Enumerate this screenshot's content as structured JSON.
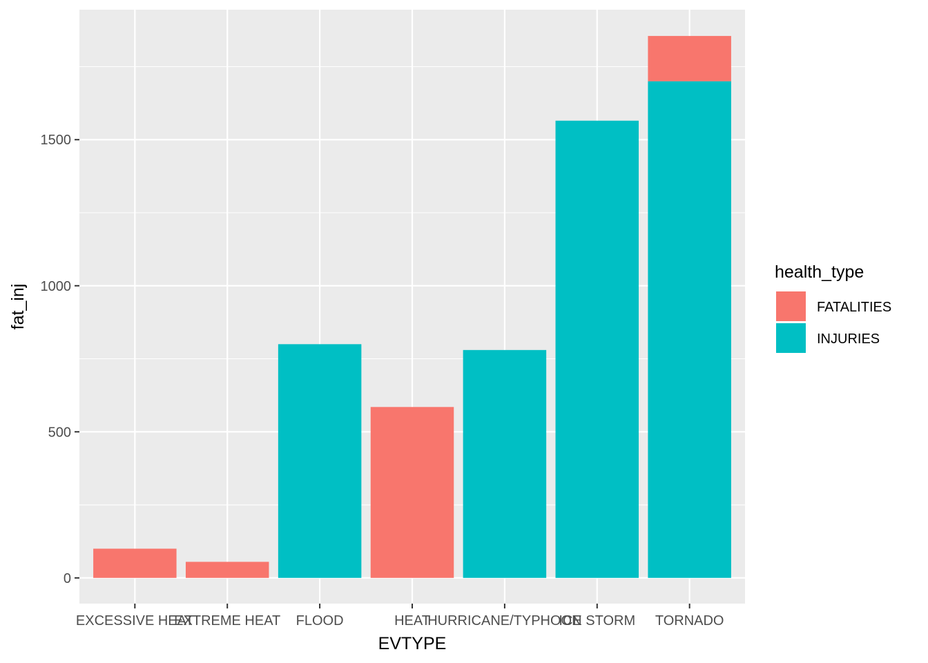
{
  "chart_data": {
    "type": "bar",
    "stacked": true,
    "categories": [
      "EXCESSIVE HEAT",
      "EXTREME HEAT",
      "FLOOD",
      "HEAT",
      "HURRICANE/TYPHOON",
      "ICE STORM",
      "TORNADO"
    ],
    "series": [
      {
        "name": "FATALITIES",
        "color": "#F8766D",
        "values": [
          100,
          55,
          0,
          585,
          0,
          0,
          155
        ]
      },
      {
        "name": "INJURIES",
        "color": "#00BFC4",
        "values": [
          0,
          0,
          800,
          0,
          780,
          1565,
          1700
        ]
      }
    ],
    "xlabel": "EVTYPE",
    "ylabel": "fat_inj",
    "yticks": [
      0,
      500,
      1000,
      1500
    ],
    "ylim": [
      -88,
      1945
    ],
    "legend": {
      "title": "health_type",
      "position": "right"
    },
    "background": "#EBEBEB",
    "grid": true
  }
}
